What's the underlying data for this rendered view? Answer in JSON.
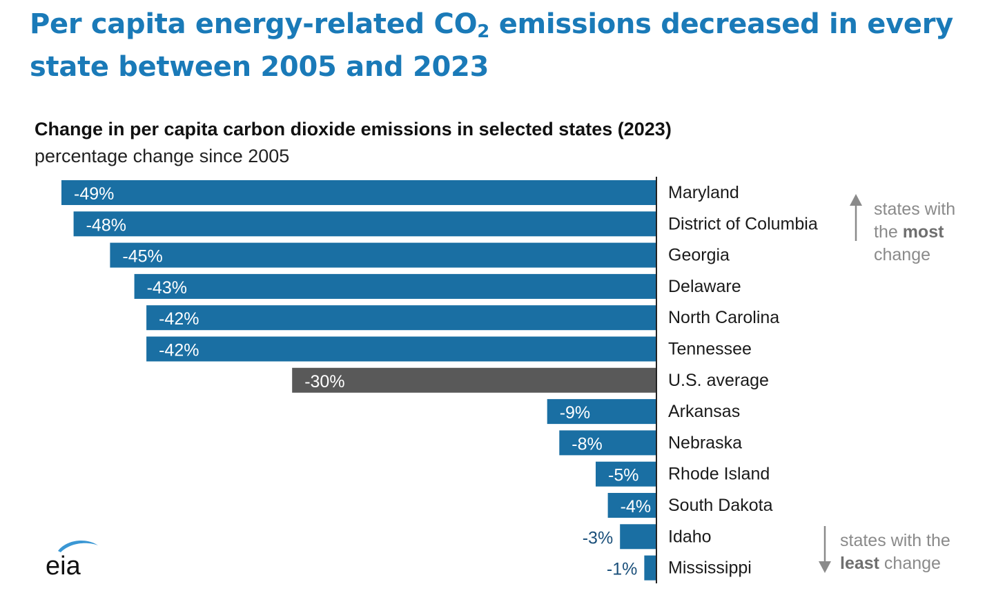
{
  "headline": {
    "before_sub": "Per capita energy-related CO",
    "sub": "2",
    "after_sub": " emissions decreased in every state between 2005 and 2023"
  },
  "annotations": {
    "most": {
      "line1": "states with",
      "line2_pre": "the ",
      "line2_bold": "most",
      "line3": "change"
    },
    "least": {
      "line1": "states with the",
      "line2_bold": "least",
      "line2_post": " change"
    }
  },
  "logo": {
    "text": "eia"
  },
  "colors": {
    "state_bar": "#1a6fa3",
    "average_bar": "#595959",
    "headline": "#1a7ab8",
    "outside_label": "#1a4f7a"
  },
  "chart_data": {
    "type": "bar",
    "orientation": "horizontal",
    "title": "Change in per capita carbon dioxide emissions in selected states (2023)",
    "subtitle": "percentage change since 2005",
    "unit": "%",
    "categories": [
      "Maryland",
      "District of Columbia",
      "Georgia",
      "Delaware",
      "North Carolina",
      "Tennessee",
      "U.S. average",
      "Arkansas",
      "Nebraska",
      "Rhode Island",
      "South Dakota",
      "Idaho",
      "Mississippi"
    ],
    "values": [
      -49,
      -48,
      -45,
      -43,
      -42,
      -42,
      -30,
      -9,
      -8,
      -5,
      -4,
      -3,
      -1
    ],
    "value_labels": [
      "-49%",
      "-48%",
      "-45%",
      "-43%",
      "-42%",
      "-42%",
      "-30%",
      "-9%",
      "-8%",
      "-5%",
      "-4%",
      "-3%",
      "-1%"
    ],
    "highlight_category": "U.S. average",
    "xlim": [
      -49,
      0
    ],
    "grid": false,
    "legend": false
  }
}
